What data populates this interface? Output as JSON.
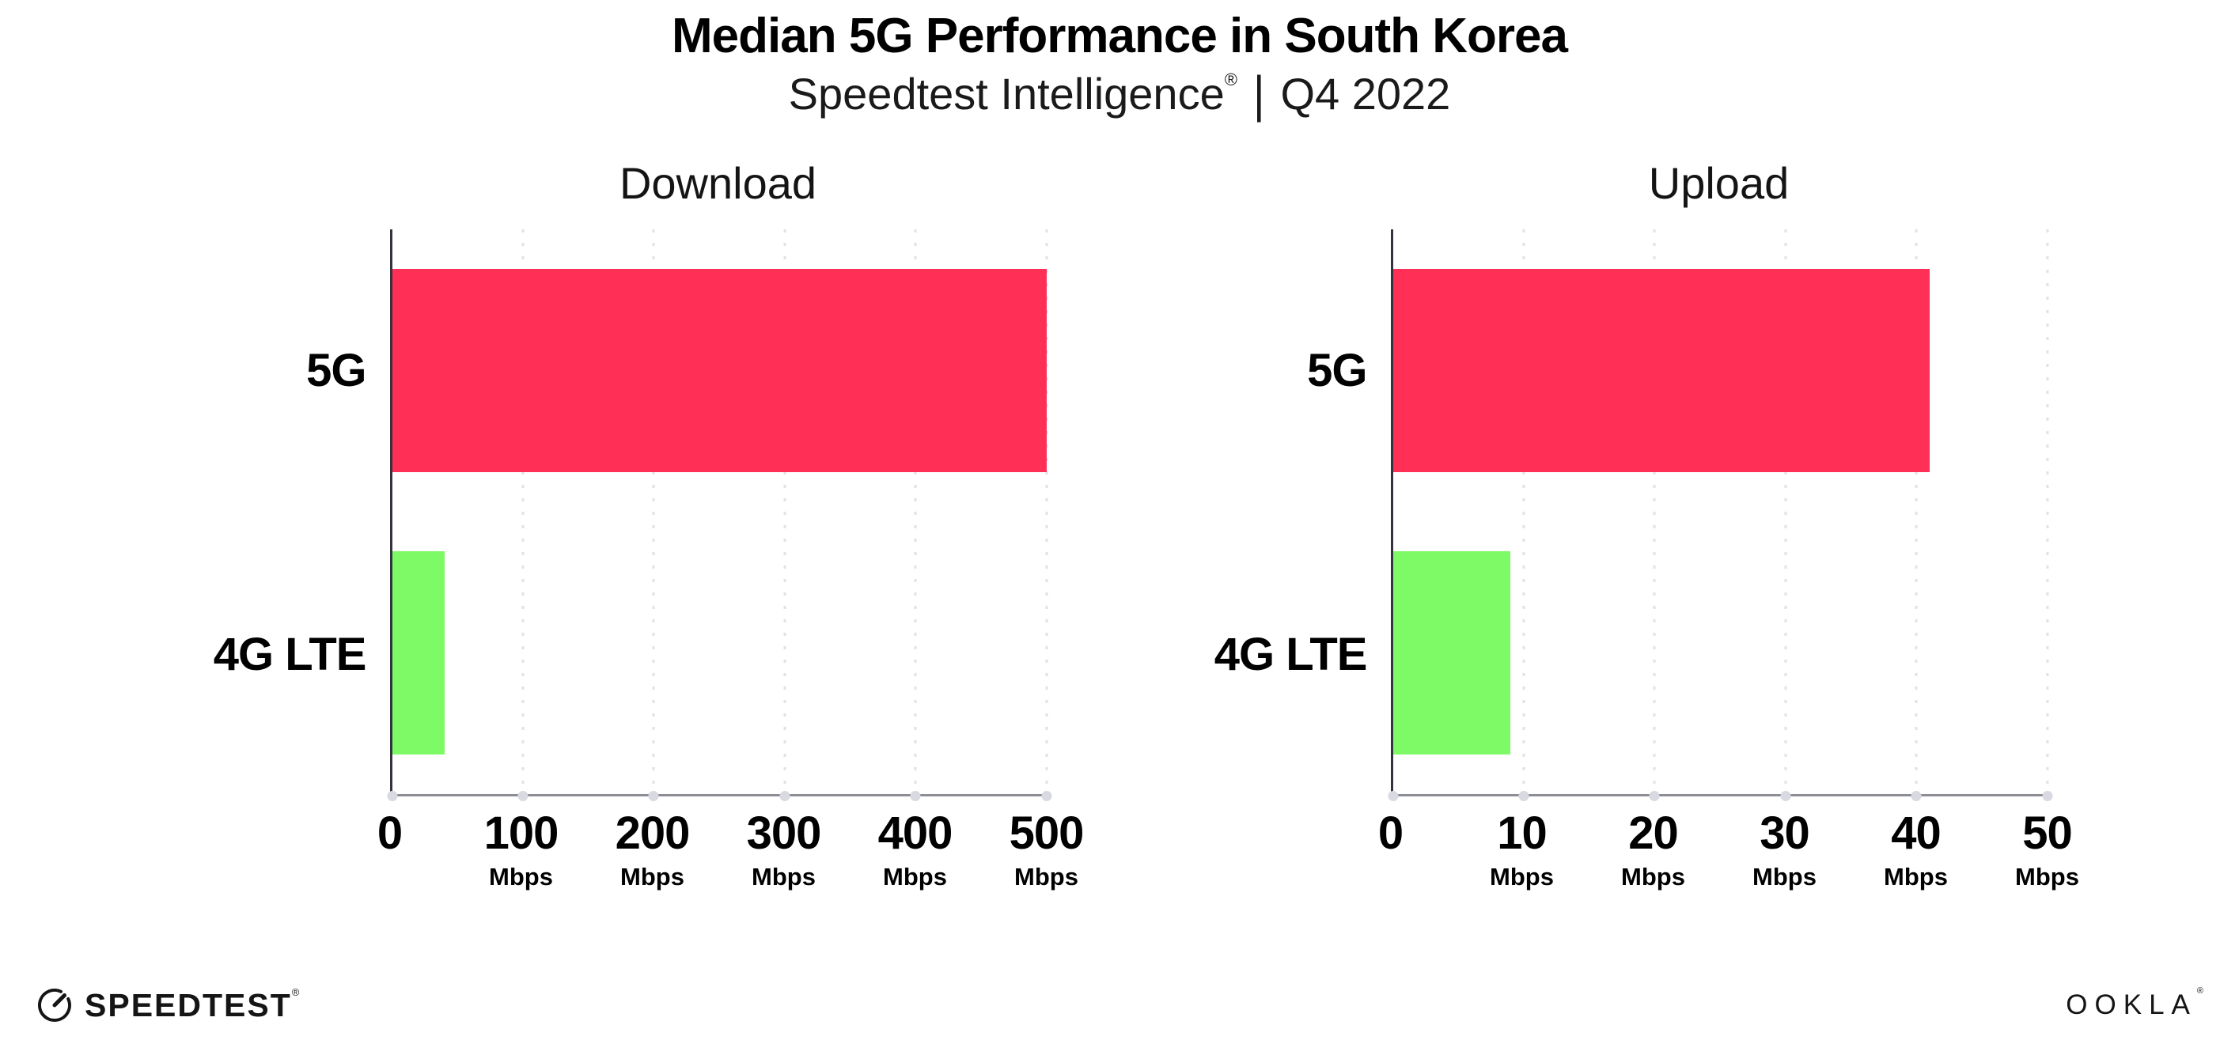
{
  "header": {
    "title": "Median 5G Performance in South Korea",
    "subtitle_brand": "Speedtest Intelligence",
    "subtitle_reg_mark": "®",
    "subtitle_separator": "|",
    "subtitle_period": "Q4 2022"
  },
  "chart_data": [
    {
      "type": "bar",
      "orientation": "horizontal",
      "title": "Download",
      "categories": [
        "5G",
        "4G LTE"
      ],
      "values": [
        500,
        40
      ],
      "unit": "Mbps",
      "xlim": [
        0,
        500
      ],
      "xticks": [
        0,
        100,
        200,
        300,
        400,
        500
      ],
      "bar_colors": [
        "#FF2F56",
        "#7EFA66"
      ],
      "grid": "dotted-vertical",
      "legend": "none"
    },
    {
      "type": "bar",
      "orientation": "horizontal",
      "title": "Upload",
      "categories": [
        "5G",
        "4G LTE"
      ],
      "values": [
        41,
        9
      ],
      "unit": "Mbps",
      "xlim": [
        0,
        50
      ],
      "xticks": [
        0,
        10,
        20,
        30,
        40,
        50
      ],
      "bar_colors": [
        "#FF2F56",
        "#7EFA66"
      ],
      "grid": "dotted-vertical",
      "legend": "none"
    }
  ],
  "footer": {
    "speedtest_logo_text": "SPEEDTEST",
    "speedtest_reg_mark": "®",
    "ookla_logo_text": "OOKLA",
    "ookla_reg_mark": "®"
  },
  "colors": {
    "bar_5g": "#FF2F56",
    "bar_4g_lte": "#7EFA66",
    "gridline": "#E1E1E9",
    "y_axis": "#33333D",
    "x_axis": "#8D8D95",
    "text": "#000000"
  }
}
